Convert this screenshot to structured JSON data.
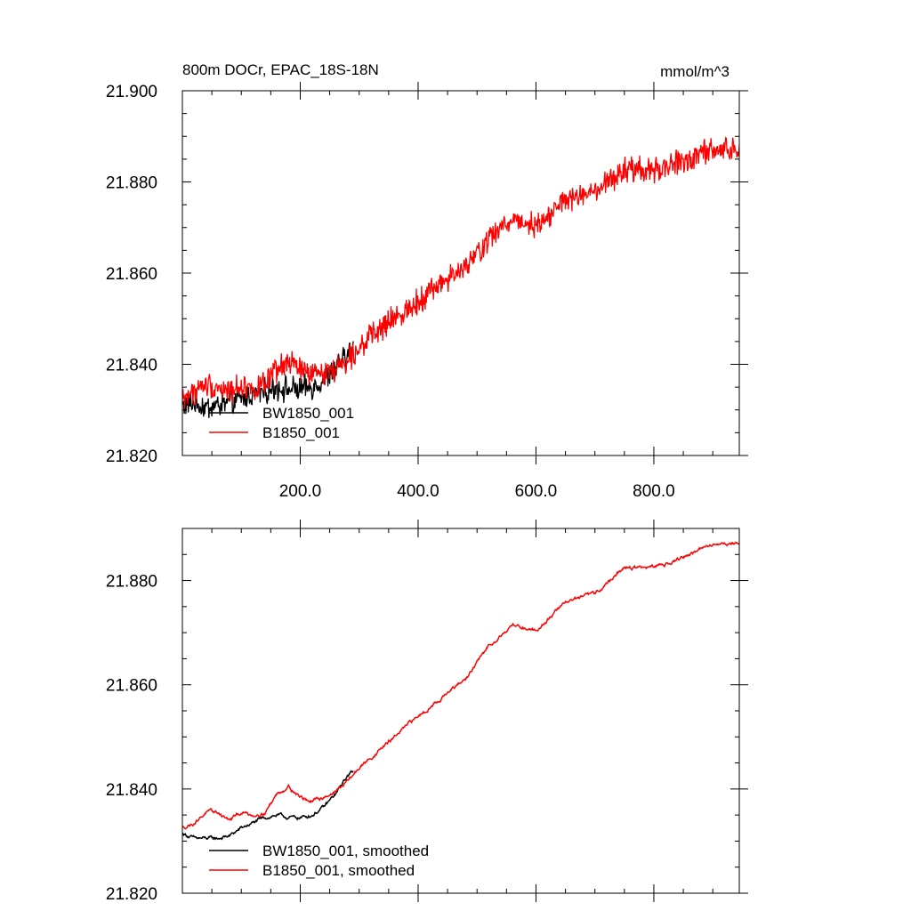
{
  "chart_data": [
    {
      "type": "line",
      "title": "800m DOCr, EPAC_18S-18N",
      "units_label": "mmol/m^3",
      "xlabel": "",
      "ylabel": "",
      "xlim": [
        0,
        945
      ],
      "ylim": [
        21.82,
        21.9
      ],
      "x_ticks": [
        "200.0",
        "400.0",
        "600.0",
        "800.0"
      ],
      "y_ticks": [
        "21.820",
        "21.840",
        "21.860",
        "21.880",
        "21.900"
      ],
      "legend_position": "bottom-left",
      "grid": false,
      "series": [
        {
          "name": "BW1850_001",
          "color": "#000000",
          "noise": 0.0042,
          "x": [
            0,
            20,
            40,
            60,
            80,
            100,
            120,
            140,
            160,
            180,
            200,
            220,
            240,
            260,
            280,
            290
          ],
          "y": [
            21.831,
            21.8315,
            21.8305,
            21.831,
            21.8315,
            21.8325,
            21.8335,
            21.834,
            21.835,
            21.8345,
            21.8345,
            21.835,
            21.8365,
            21.839,
            21.842,
            21.8435
          ]
        },
        {
          "name": "B1850_001",
          "color": "#ff0000",
          "noise": 0.0042,
          "x": [
            0,
            20,
            40,
            60,
            80,
            100,
            120,
            140,
            160,
            180,
            200,
            220,
            240,
            260,
            280,
            300,
            350,
            400,
            440,
            480,
            520,
            560,
            600,
            620,
            650,
            700,
            750,
            800,
            850,
            900,
            945
          ],
          "y": [
            21.8325,
            21.834,
            21.8355,
            21.835,
            21.834,
            21.8355,
            21.8345,
            21.8355,
            21.8385,
            21.8405,
            21.839,
            21.8375,
            21.8385,
            21.839,
            21.841,
            21.844,
            21.849,
            21.854,
            21.858,
            21.861,
            21.8675,
            21.872,
            21.8705,
            21.8725,
            21.876,
            21.8775,
            21.8825,
            21.8825,
            21.8845,
            21.887,
            21.887
          ]
        }
      ]
    },
    {
      "type": "line",
      "title": "",
      "xlabel": "",
      "ylabel": "",
      "xlim": [
        0,
        945
      ],
      "ylim": [
        21.82,
        21.89
      ],
      "y_ticks": [
        "21.820",
        "21.840",
        "21.860",
        "21.880"
      ],
      "legend_position": "bottom-left",
      "grid": false,
      "series": [
        {
          "name": "BW1850_001, smoothed",
          "color": "#000000",
          "noise": 0.0003,
          "x": [
            0,
            20,
            40,
            60,
            80,
            100,
            120,
            140,
            160,
            180,
            200,
            220,
            240,
            260,
            280,
            290
          ],
          "y": [
            21.8315,
            21.8305,
            21.8305,
            21.8305,
            21.831,
            21.8325,
            21.8335,
            21.8345,
            21.835,
            21.8345,
            21.8345,
            21.835,
            21.8365,
            21.839,
            21.8425,
            21.8435
          ]
        },
        {
          "name": "B1850_001, smoothed",
          "color": "#ff0000",
          "noise": 0.0003,
          "x": [
            0,
            20,
            40,
            60,
            80,
            100,
            120,
            140,
            160,
            180,
            200,
            220,
            240,
            260,
            280,
            300,
            350,
            400,
            440,
            480,
            520,
            560,
            600,
            620,
            650,
            700,
            750,
            800,
            850,
            900,
            945
          ],
          "y": [
            21.8325,
            21.8335,
            21.8355,
            21.8355,
            21.834,
            21.8355,
            21.835,
            21.8355,
            21.839,
            21.8405,
            21.8385,
            21.8375,
            21.8385,
            21.8395,
            21.8415,
            21.844,
            21.849,
            21.854,
            21.8575,
            21.861,
            21.8675,
            21.8715,
            21.8705,
            21.8725,
            21.876,
            21.8775,
            21.8825,
            21.8825,
            21.8845,
            21.887,
            21.8872
          ]
        }
      ]
    }
  ]
}
